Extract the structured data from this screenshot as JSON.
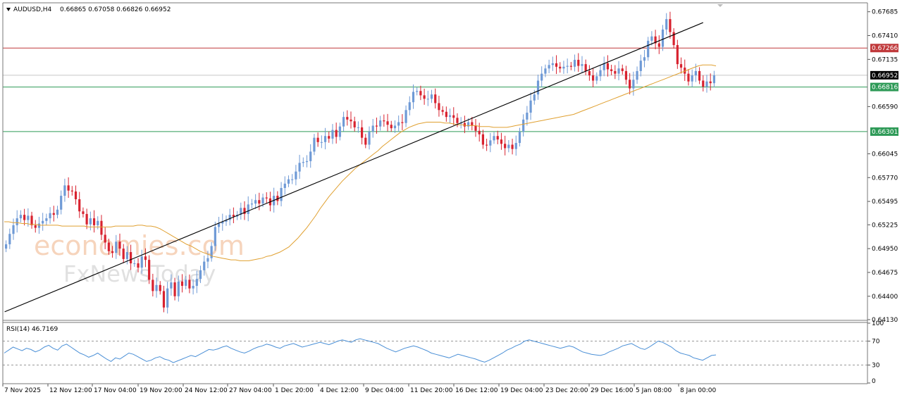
{
  "header": {
    "symbol": "AUDUSD,H4",
    "ohlc": "0.66865 0.67058 0.66826 0.66952"
  },
  "watermark": {
    "line1": "economies.com",
    "line2": "FxNewsToday"
  },
  "rsi": {
    "label": "RSI(14) 46.7169"
  },
  "colors": {
    "bull": "#6f9ad6",
    "bear": "#d8222f",
    "ma": "#e0a030",
    "rsi": "#4a8fd6",
    "resistance": "#c0393b",
    "support": "#2e9a57",
    "current": "#000000"
  },
  "chart_data": [
    {
      "type": "candlestick",
      "ylim": [
        0.6413,
        0.6778
      ],
      "yticks": [
        "0.67685",
        "0.67410",
        "0.67135",
        "0.66590",
        "0.66045",
        "0.65770",
        "0.65495",
        "0.65225",
        "0.64950",
        "0.64675",
        "0.64400",
        "0.64130"
      ],
      "xticks": [
        "7 Nov 2025",
        "12 Nov 12:00",
        "17 Nov 04:00",
        "19 Nov 20:00",
        "24 Nov 12:00",
        "27 Nov 04:00",
        "1 Dec 20:00",
        "4 Dec 12:00",
        "9 Dec 04:00",
        "11 Dec 20:00",
        "16 Dec 12:00",
        "19 Dec 04:00",
        "23 Dec 20:00",
        "29 Dec 16:00",
        "5 Jan 08:00",
        "8 Jan 00:00"
      ],
      "levels": [
        {
          "name": "resistance",
          "value": 0.67266,
          "label": "0.67266"
        },
        {
          "name": "current",
          "value": 0.66952,
          "label": "0.66952"
        },
        {
          "name": "support-1",
          "value": 0.66816,
          "label": "0.66816"
        },
        {
          "name": "support-2",
          "value": 0.66301,
          "label": "0.66301"
        }
      ],
      "trendline": {
        "from": [
          0,
          0.6422
        ],
        "to": [
          190,
          0.6756
        ]
      },
      "close": [
        0.65,
        0.6512,
        0.6522,
        0.653,
        0.6534,
        0.6528,
        0.6533,
        0.6522,
        0.6519,
        0.6524,
        0.6527,
        0.653,
        0.6536,
        0.6534,
        0.654,
        0.6556,
        0.6568,
        0.6562,
        0.6561,
        0.6552,
        0.6538,
        0.6535,
        0.6523,
        0.653,
        0.6522,
        0.6527,
        0.6511,
        0.6502,
        0.6492,
        0.649,
        0.6503,
        0.6495,
        0.6483,
        0.6491,
        0.6478,
        0.6478,
        0.6473,
        0.6486,
        0.6482,
        0.6459,
        0.6446,
        0.6453,
        0.6446,
        0.6427,
        0.6449,
        0.6456,
        0.644,
        0.6457,
        0.6452,
        0.6459,
        0.6449,
        0.6452,
        0.646,
        0.647,
        0.648,
        0.6484,
        0.6498,
        0.652,
        0.6524,
        0.6526,
        0.6528,
        0.6534,
        0.6532,
        0.6534,
        0.6542,
        0.6535,
        0.6546,
        0.6547,
        0.6551,
        0.6547,
        0.6554,
        0.6553,
        0.6545,
        0.6556,
        0.655,
        0.6565,
        0.657,
        0.6575,
        0.6575,
        0.6584,
        0.6594,
        0.6595,
        0.6596,
        0.6607,
        0.6623,
        0.6618,
        0.6618,
        0.6625,
        0.6622,
        0.6632,
        0.6624,
        0.6636,
        0.6647,
        0.6644,
        0.6642,
        0.6635,
        0.6635,
        0.6623,
        0.6615,
        0.663,
        0.6637,
        0.6636,
        0.6643,
        0.6642,
        0.6638,
        0.6634,
        0.6637,
        0.6641,
        0.664,
        0.6655,
        0.6664,
        0.6676,
        0.6677,
        0.6672,
        0.6668,
        0.6668,
        0.6673,
        0.6663,
        0.6655,
        0.6653,
        0.6647,
        0.6649,
        0.6646,
        0.664,
        0.664,
        0.6636,
        0.6641,
        0.6637,
        0.6631,
        0.6627,
        0.6615,
        0.6614,
        0.662,
        0.6625,
        0.6621,
        0.6616,
        0.6611,
        0.6615,
        0.661,
        0.6617,
        0.663,
        0.6644,
        0.6652,
        0.6666,
        0.6673,
        0.6689,
        0.6697,
        0.6703,
        0.6707,
        0.6709,
        0.6705,
        0.6703,
        0.6705,
        0.6706,
        0.6705,
        0.6713,
        0.6706,
        0.6708,
        0.67,
        0.6695,
        0.6689,
        0.6694,
        0.6701,
        0.6709,
        0.6702,
        0.67,
        0.6697,
        0.6703,
        0.67,
        0.669,
        0.668,
        0.669,
        0.67,
        0.6712,
        0.6716,
        0.6735,
        0.674,
        0.6732,
        0.6728,
        0.6748,
        0.676,
        0.6745,
        0.673,
        0.6708,
        0.6704,
        0.6697,
        0.6688,
        0.6695,
        0.67,
        0.6689,
        0.6682,
        0.6688,
        0.6686,
        0.6695
      ],
      "ma": [
        0.6526,
        0.6526,
        0.6525,
        0.6525,
        0.6524,
        0.6524,
        0.6523,
        0.6523,
        0.6522,
        0.6522,
        0.6522,
        0.6522,
        0.6522,
        0.6521,
        0.6521,
        0.6521,
        0.6521,
        0.6521,
        0.6521,
        0.652,
        0.652,
        0.652,
        0.652,
        0.652,
        0.652,
        0.6521,
        0.6521,
        0.6521,
        0.6521,
        0.6521,
        0.6522,
        0.6522,
        0.6521,
        0.6521,
        0.652,
        0.6518,
        0.6515,
        0.6512,
        0.6509,
        0.6506,
        0.6503,
        0.65,
        0.6498,
        0.6495,
        0.6492,
        0.649,
        0.6488,
        0.6486,
        0.6485,
        0.6484,
        0.6483,
        0.6482,
        0.6482,
        0.6481,
        0.6481,
        0.6481,
        0.6482,
        0.6483,
        0.6484,
        0.6486,
        0.6487,
        0.6489,
        0.6491,
        0.6494,
        0.6497,
        0.6502,
        0.6507,
        0.6513,
        0.6519,
        0.6526,
        0.6533,
        0.6541,
        0.6548,
        0.6555,
        0.6561,
        0.6567,
        0.6573,
        0.6578,
        0.6583,
        0.6588,
        0.6592,
        0.6596,
        0.66,
        0.6604,
        0.6608,
        0.6613,
        0.6617,
        0.6621,
        0.6625,
        0.6629,
        0.6632,
        0.6635,
        0.6637,
        0.6639,
        0.664,
        0.6641,
        0.6641,
        0.6641,
        0.6641,
        0.664,
        0.664,
        0.6639,
        0.6638,
        0.6638,
        0.6637,
        0.6637,
        0.6637,
        0.6636,
        0.6636,
        0.6636,
        0.6635,
        0.6635,
        0.6635,
        0.6635,
        0.6636,
        0.6637,
        0.6638,
        0.6639,
        0.664,
        0.6641,
        0.6642,
        0.6643,
        0.6644,
        0.6645,
        0.6646,
        0.6647,
        0.6648,
        0.6649,
        0.665,
        0.6652,
        0.6654,
        0.6656,
        0.6658,
        0.666,
        0.6662,
        0.6664,
        0.6666,
        0.6668,
        0.667,
        0.6672,
        0.6674,
        0.6676,
        0.6678,
        0.668,
        0.6682,
        0.6684,
        0.6686,
        0.6688,
        0.669,
        0.6692,
        0.6694,
        0.6696,
        0.6698,
        0.67,
        0.6702,
        0.6704,
        0.6706,
        0.6707,
        0.6707,
        0.6707,
        0.6706
      ]
    },
    {
      "type": "line",
      "name": "RSI(14)",
      "ylim": [
        0,
        100
      ],
      "yticks": [
        "100",
        "70",
        "30",
        "0"
      ],
      "levels": [
        70,
        30
      ],
      "values": [
        50,
        55,
        60,
        57,
        54,
        58,
        56,
        52,
        55,
        60,
        63,
        58,
        55,
        62,
        65,
        60,
        55,
        50,
        47,
        43,
        46,
        50,
        45,
        40,
        36,
        42,
        40,
        45,
        50,
        48,
        44,
        40,
        36,
        38,
        42,
        44,
        40,
        38,
        34,
        37,
        40,
        43,
        46,
        44,
        48,
        52,
        56,
        55,
        57,
        60,
        62,
        58,
        55,
        52,
        50,
        53,
        57,
        60,
        62,
        65,
        63,
        60,
        58,
        62,
        64,
        66,
        63,
        60,
        62,
        64,
        66,
        68,
        66,
        64,
        67,
        70,
        72,
        70,
        68,
        72,
        74,
        72,
        70,
        68,
        66,
        62,
        58,
        55,
        52,
        55,
        58,
        60,
        62,
        60,
        57,
        54,
        50,
        48,
        46,
        44,
        42,
        45,
        48,
        46,
        44,
        42,
        40,
        37,
        35,
        38,
        42,
        46,
        50,
        55,
        58,
        62,
        65,
        70,
        72,
        70,
        68,
        66,
        64,
        62,
        60,
        58,
        60,
        62,
        60,
        56,
        52,
        50,
        48,
        47,
        46,
        48,
        52,
        55,
        58,
        62,
        64,
        66,
        62,
        58,
        56,
        60,
        65,
        70,
        68,
        64,
        60,
        54,
        50,
        48,
        46,
        42,
        40,
        38,
        42,
        46,
        47
      ]
    }
  ]
}
